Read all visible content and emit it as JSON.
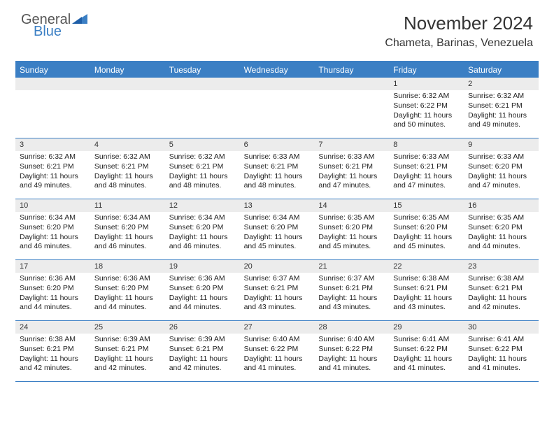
{
  "brand": {
    "text1": "General",
    "text2": "Blue"
  },
  "title": "November 2024",
  "location": "Chameta, Barinas, Venezuela",
  "colors": {
    "accent": "#3b7fc4",
    "daynum_bg": "#ececec",
    "text": "#333333",
    "bg": "#ffffff"
  },
  "dayNames": [
    "Sunday",
    "Monday",
    "Tuesday",
    "Wednesday",
    "Thursday",
    "Friday",
    "Saturday"
  ],
  "weeks": [
    [
      null,
      null,
      null,
      null,
      null,
      {
        "n": "1",
        "sr": "6:32 AM",
        "ss": "6:22 PM",
        "dlh": "11",
        "dlm": "50"
      },
      {
        "n": "2",
        "sr": "6:32 AM",
        "ss": "6:21 PM",
        "dlh": "11",
        "dlm": "49"
      }
    ],
    [
      {
        "n": "3",
        "sr": "6:32 AM",
        "ss": "6:21 PM",
        "dlh": "11",
        "dlm": "49"
      },
      {
        "n": "4",
        "sr": "6:32 AM",
        "ss": "6:21 PM",
        "dlh": "11",
        "dlm": "48"
      },
      {
        "n": "5",
        "sr": "6:32 AM",
        "ss": "6:21 PM",
        "dlh": "11",
        "dlm": "48"
      },
      {
        "n": "6",
        "sr": "6:33 AM",
        "ss": "6:21 PM",
        "dlh": "11",
        "dlm": "48"
      },
      {
        "n": "7",
        "sr": "6:33 AM",
        "ss": "6:21 PM",
        "dlh": "11",
        "dlm": "47"
      },
      {
        "n": "8",
        "sr": "6:33 AM",
        "ss": "6:21 PM",
        "dlh": "11",
        "dlm": "47"
      },
      {
        "n": "9",
        "sr": "6:33 AM",
        "ss": "6:20 PM",
        "dlh": "11",
        "dlm": "47"
      }
    ],
    [
      {
        "n": "10",
        "sr": "6:34 AM",
        "ss": "6:20 PM",
        "dlh": "11",
        "dlm": "46"
      },
      {
        "n": "11",
        "sr": "6:34 AM",
        "ss": "6:20 PM",
        "dlh": "11",
        "dlm": "46"
      },
      {
        "n": "12",
        "sr": "6:34 AM",
        "ss": "6:20 PM",
        "dlh": "11",
        "dlm": "46"
      },
      {
        "n": "13",
        "sr": "6:34 AM",
        "ss": "6:20 PM",
        "dlh": "11",
        "dlm": "45"
      },
      {
        "n": "14",
        "sr": "6:35 AM",
        "ss": "6:20 PM",
        "dlh": "11",
        "dlm": "45"
      },
      {
        "n": "15",
        "sr": "6:35 AM",
        "ss": "6:20 PM",
        "dlh": "11",
        "dlm": "45"
      },
      {
        "n": "16",
        "sr": "6:35 AM",
        "ss": "6:20 PM",
        "dlh": "11",
        "dlm": "44"
      }
    ],
    [
      {
        "n": "17",
        "sr": "6:36 AM",
        "ss": "6:20 PM",
        "dlh": "11",
        "dlm": "44"
      },
      {
        "n": "18",
        "sr": "6:36 AM",
        "ss": "6:20 PM",
        "dlh": "11",
        "dlm": "44"
      },
      {
        "n": "19",
        "sr": "6:36 AM",
        "ss": "6:20 PM",
        "dlh": "11",
        "dlm": "44"
      },
      {
        "n": "20",
        "sr": "6:37 AM",
        "ss": "6:21 PM",
        "dlh": "11",
        "dlm": "43"
      },
      {
        "n": "21",
        "sr": "6:37 AM",
        "ss": "6:21 PM",
        "dlh": "11",
        "dlm": "43"
      },
      {
        "n": "22",
        "sr": "6:38 AM",
        "ss": "6:21 PM",
        "dlh": "11",
        "dlm": "43"
      },
      {
        "n": "23",
        "sr": "6:38 AM",
        "ss": "6:21 PM",
        "dlh": "11",
        "dlm": "42"
      }
    ],
    [
      {
        "n": "24",
        "sr": "6:38 AM",
        "ss": "6:21 PM",
        "dlh": "11",
        "dlm": "42"
      },
      {
        "n": "25",
        "sr": "6:39 AM",
        "ss": "6:21 PM",
        "dlh": "11",
        "dlm": "42"
      },
      {
        "n": "26",
        "sr": "6:39 AM",
        "ss": "6:21 PM",
        "dlh": "11",
        "dlm": "42"
      },
      {
        "n": "27",
        "sr": "6:40 AM",
        "ss": "6:22 PM",
        "dlh": "11",
        "dlm": "41"
      },
      {
        "n": "28",
        "sr": "6:40 AM",
        "ss": "6:22 PM",
        "dlh": "11",
        "dlm": "41"
      },
      {
        "n": "29",
        "sr": "6:41 AM",
        "ss": "6:22 PM",
        "dlh": "11",
        "dlm": "41"
      },
      {
        "n": "30",
        "sr": "6:41 AM",
        "ss": "6:22 PM",
        "dlh": "11",
        "dlm": "41"
      }
    ]
  ],
  "labels": {
    "sunrise": "Sunrise:",
    "sunset": "Sunset:",
    "daylight_prefix": "Daylight:",
    "hours_word": "hours",
    "and_word": "and",
    "minutes_word": "minutes."
  }
}
